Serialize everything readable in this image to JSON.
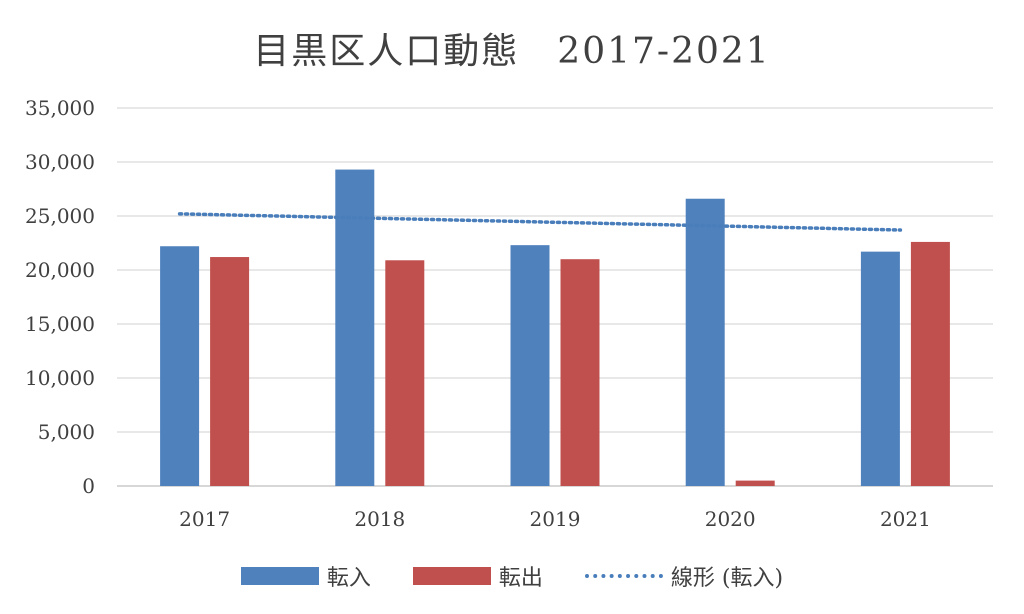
{
  "chart_data": {
    "type": "bar",
    "title": "目黒区人口動態　2017-2021",
    "categories": [
      "2017",
      "2018",
      "2019",
      "2020",
      "2021"
    ],
    "series": [
      {
        "name": "転入",
        "values": [
          22200,
          29300,
          22300,
          26600,
          21700
        ],
        "color": "#4f81bd"
      },
      {
        "name": "転出",
        "values": [
          21200,
          20900,
          21000,
          500,
          22600
        ],
        "color": "#c0504d"
      }
    ],
    "trendline": {
      "name": "線形 (転入)",
      "series": "転入",
      "start": 25200,
      "end": 23700,
      "color": "#4a7ebb"
    },
    "ylim": [
      0,
      35000
    ],
    "yticks": [
      "0",
      "5,000",
      "10,000",
      "15,000",
      "20,000",
      "25,000",
      "30,000",
      "35,000"
    ],
    "grid": true,
    "legend_position": "bottom"
  }
}
